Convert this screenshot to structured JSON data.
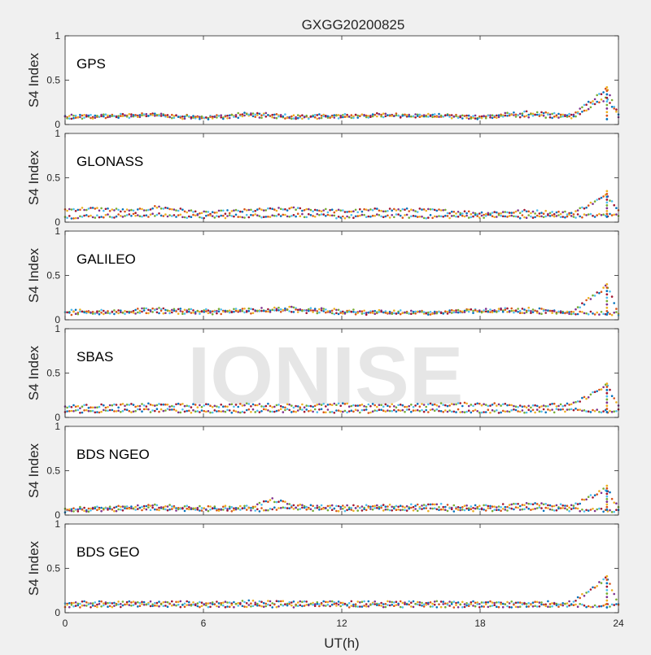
{
  "figure": {
    "title": "GXGG20200825",
    "watermark": "IONISE",
    "background_color": "#f0f0f0",
    "axes_color": "#ffffff"
  },
  "chart_data": {
    "type": "scatter",
    "xlabel": "UT(h)",
    "ylabel": "S4 Index",
    "xlim": [
      0,
      24
    ],
    "ylim": [
      0,
      1
    ],
    "xticks": [
      "0",
      "6",
      "12",
      "18",
      "24"
    ],
    "yticks": [
      "0",
      "0.5",
      "1"
    ],
    "grid": false,
    "series_colors": [
      "#0072BD",
      "#D95319",
      "#EDB120",
      "#7E2F8E",
      "#77AC30",
      "#4DBEEE",
      "#A2142F"
    ],
    "panels": [
      {
        "label": "GPS",
        "series": [
          {
            "x": [
              0,
              2,
              4,
              6,
              8,
              10,
              12,
              14,
              16,
              18,
              20,
              22,
              23.5,
              24
            ],
            "y": [
              0.09,
              0.1,
              0.11,
              0.08,
              0.12,
              0.09,
              0.1,
              0.11,
              0.1,
              0.09,
              0.13,
              0.1,
              0.4,
              0.1
            ]
          },
          {
            "x": [
              0,
              2,
              4,
              6,
              8,
              10,
              12,
              14,
              16,
              18,
              20,
              22,
              23.5,
              24
            ],
            "y": [
              0.08,
              0.09,
              0.1,
              0.07,
              0.1,
              0.08,
              0.09,
              0.1,
              0.09,
              0.08,
              0.1,
              0.09,
              0.3,
              0.09
            ]
          }
        ],
        "spike": {
          "x": 23.5,
          "y": 0.42
        }
      },
      {
        "label": "GLONASS",
        "series": [
          {
            "x": [
              0,
              1,
              2,
              3,
              4,
              6,
              8,
              10,
              12,
              14,
              16,
              18,
              20,
              22,
              23.5,
              24
            ],
            "y": [
              0.14,
              0.15,
              0.14,
              0.12,
              0.17,
              0.1,
              0.13,
              0.15,
              0.12,
              0.14,
              0.13,
              0.1,
              0.12,
              0.1,
              0.3,
              0.15
            ]
          },
          {
            "x": [
              0,
              2,
              4,
              6,
              8,
              10,
              12,
              14,
              16,
              18,
              20,
              22,
              24
            ],
            "y": [
              0.06,
              0.07,
              0.08,
              0.06,
              0.07,
              0.08,
              0.06,
              0.07,
              0.06,
              0.07,
              0.06,
              0.07,
              0.08
            ]
          }
        ],
        "spike": {
          "x": 23.5,
          "y": 0.35
        }
      },
      {
        "label": "GALILEO",
        "series": [
          {
            "x": [
              0,
              2,
              4,
              6,
              8,
              10,
              12,
              14,
              16,
              18,
              20,
              22,
              23.5,
              24
            ],
            "y": [
              0.1,
              0.09,
              0.12,
              0.1,
              0.11,
              0.13,
              0.1,
              0.09,
              0.08,
              0.11,
              0.12,
              0.09,
              0.38,
              0.08
            ]
          },
          {
            "x": [
              0,
              2,
              4,
              6,
              8,
              10,
              12,
              14,
              16,
              18,
              20,
              22,
              24
            ],
            "y": [
              0.07,
              0.08,
              0.09,
              0.08,
              0.09,
              0.1,
              0.08,
              0.07,
              0.08,
              0.1,
              0.09,
              0.08,
              0.07
            ]
          }
        ],
        "spike": {
          "x": 23.5,
          "y": 0.4
        }
      },
      {
        "label": "SBAS",
        "series": [
          {
            "x": [
              0,
              2,
              4,
              6,
              8,
              10,
              12,
              14,
              16,
              18,
              20,
              22,
              23.5,
              24
            ],
            "y": [
              0.12,
              0.13,
              0.14,
              0.13,
              0.14,
              0.13,
              0.14,
              0.13,
              0.14,
              0.15,
              0.13,
              0.14,
              0.36,
              0.12
            ]
          },
          {
            "x": [
              0,
              2,
              4,
              6,
              8,
              10,
              12,
              14,
              16,
              18,
              20,
              22,
              24
            ],
            "y": [
              0.07,
              0.07,
              0.08,
              0.07,
              0.07,
              0.08,
              0.07,
              0.07,
              0.08,
              0.07,
              0.07,
              0.08,
              0.07
            ]
          }
        ],
        "spike": {
          "x": 23.5,
          "y": 0.38
        }
      },
      {
        "label": "BDS NGEO",
        "series": [
          {
            "x": [
              0,
              2,
              4,
              6,
              8,
              9,
              10,
              12,
              14,
              16,
              18,
              20,
              22,
              23.5,
              24
            ],
            "y": [
              0.07,
              0.08,
              0.1,
              0.08,
              0.09,
              0.17,
              0.1,
              0.09,
              0.1,
              0.11,
              0.09,
              0.12,
              0.1,
              0.3,
              0.07
            ]
          },
          {
            "x": [
              0,
              2,
              4,
              6,
              8,
              10,
              12,
              14,
              16,
              18,
              20,
              22,
              24
            ],
            "y": [
              0.05,
              0.06,
              0.07,
              0.06,
              0.06,
              0.07,
              0.06,
              0.07,
              0.06,
              0.06,
              0.07,
              0.06,
              0.05
            ]
          }
        ],
        "spike": {
          "x": 23.5,
          "y": 0.33
        }
      },
      {
        "label": "BDS GEO",
        "series": [
          {
            "x": [
              0,
              2,
              4,
              6,
              8,
              10,
              12,
              14,
              16,
              18,
              20,
              22,
              23.5,
              24
            ],
            "y": [
              0.11,
              0.11,
              0.11,
              0.11,
              0.12,
              0.11,
              0.11,
              0.11,
              0.11,
              0.11,
              0.11,
              0.11,
              0.4,
              0.1
            ]
          },
          {
            "x": [
              0,
              2,
              4,
              6,
              8,
              10,
              12,
              14,
              16,
              18,
              20,
              22,
              24
            ],
            "y": [
              0.08,
              0.08,
              0.08,
              0.08,
              0.08,
              0.08,
              0.08,
              0.08,
              0.08,
              0.08,
              0.08,
              0.08,
              0.08
            ]
          }
        ],
        "spike": {
          "x": 23.5,
          "y": 0.41
        }
      }
    ]
  }
}
